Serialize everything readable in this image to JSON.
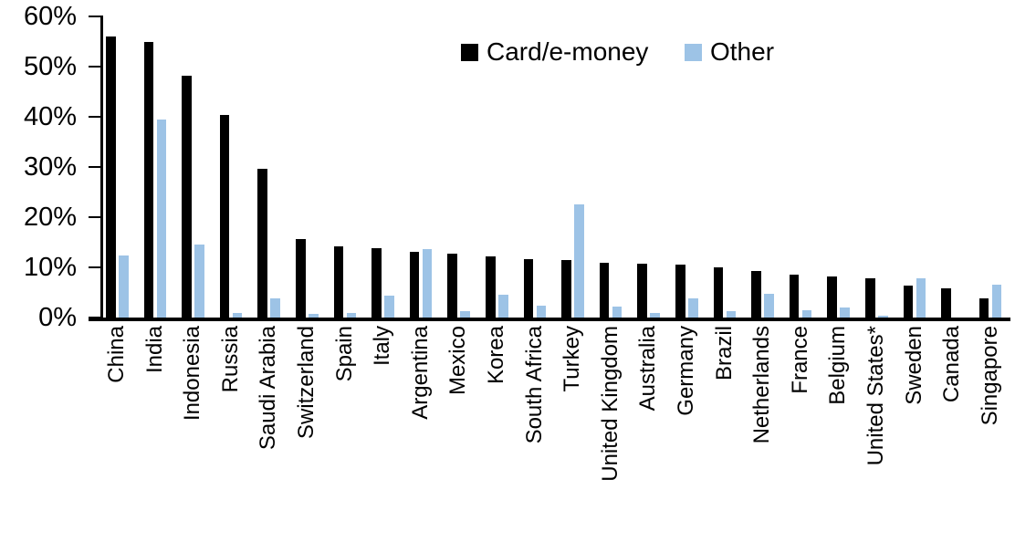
{
  "legend": {
    "series1": "Card/e-money",
    "series2": "Other"
  },
  "colors": {
    "card": "#000000",
    "other": "#9dc3e6",
    "axis": "#000000",
    "background": "#ffffff"
  },
  "chart_data": {
    "type": "bar",
    "title": "",
    "xlabel": "",
    "ylabel": "",
    "ylim": [
      0,
      60
    ],
    "ytick_step": 10,
    "ytick_labels": [
      "0%",
      "10%",
      "20%",
      "30%",
      "40%",
      "50%",
      "60%"
    ],
    "grid": false,
    "legend_position": "top-center",
    "categories": [
      "China",
      "India",
      "Indonesia",
      "Russia",
      "Saudi Arabia",
      "Switzerland",
      "Spain",
      "Italy",
      "Argentina",
      "Mexico",
      "Korea",
      "South Africa",
      "Turkey",
      "United Kingdom",
      "Australia",
      "Germany",
      "Brazil",
      "Netherlands",
      "France",
      "Belgium",
      "United States*",
      "Sweden",
      "Canada",
      "Singapore"
    ],
    "series": [
      {
        "name": "Card/e-money",
        "color": "#000000",
        "values": [
          56.0,
          55.0,
          48.2,
          40.4,
          29.7,
          15.6,
          14.1,
          13.9,
          13.1,
          12.8,
          12.2,
          11.6,
          11.5,
          11.0,
          10.7,
          10.5,
          10.0,
          9.2,
          8.6,
          8.1,
          7.8,
          6.4,
          5.9,
          3.8
        ]
      },
      {
        "name": "Other",
        "color": "#9dc3e6",
        "values": [
          12.3,
          39.5,
          14.5,
          1.0,
          3.9,
          0.8,
          0.9,
          4.4,
          13.7,
          1.2,
          4.5,
          2.3,
          22.5,
          2.2,
          0.9,
          3.8,
          1.2,
          4.7,
          1.5,
          2.0,
          0.3,
          7.9,
          0.0,
          6.6
        ]
      }
    ]
  }
}
